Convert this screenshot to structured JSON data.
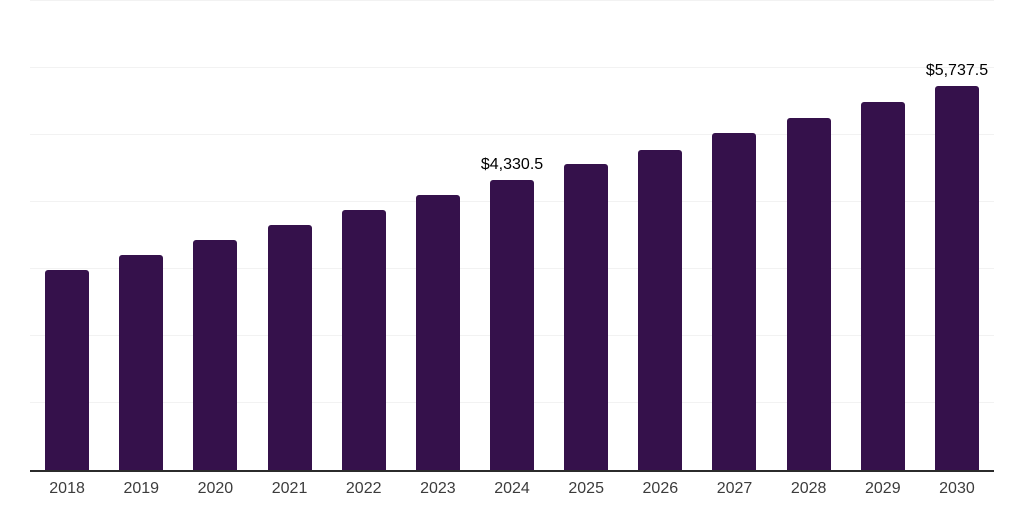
{
  "chart_data": {
    "type": "bar",
    "categories": [
      "2018",
      "2019",
      "2020",
      "2021",
      "2022",
      "2023",
      "2024",
      "2025",
      "2026",
      "2027",
      "2028",
      "2029",
      "2030"
    ],
    "values": [
      2980,
      3205,
      3430,
      3650,
      3875,
      4100,
      4330.5,
      4560,
      4770,
      5035,
      5260,
      5500,
      5737.5
    ],
    "labeled_points": [
      {
        "category": "2024",
        "label": "$4,330.5"
      },
      {
        "category": "2030",
        "label": "$5,737.5"
      }
    ],
    "title": "",
    "xlabel": "",
    "ylabel": "",
    "ylim": [
      0,
      7000
    ],
    "gridline_step": 1000,
    "grid": "horizontal",
    "legend": "none",
    "colors": {
      "bar": "#35114B",
      "axis_line": "#2b2b2b",
      "gridline": "#f2f2f2",
      "value_label": "#000000",
      "tick_label": "#3c3c3c",
      "background": "#ffffff"
    }
  }
}
